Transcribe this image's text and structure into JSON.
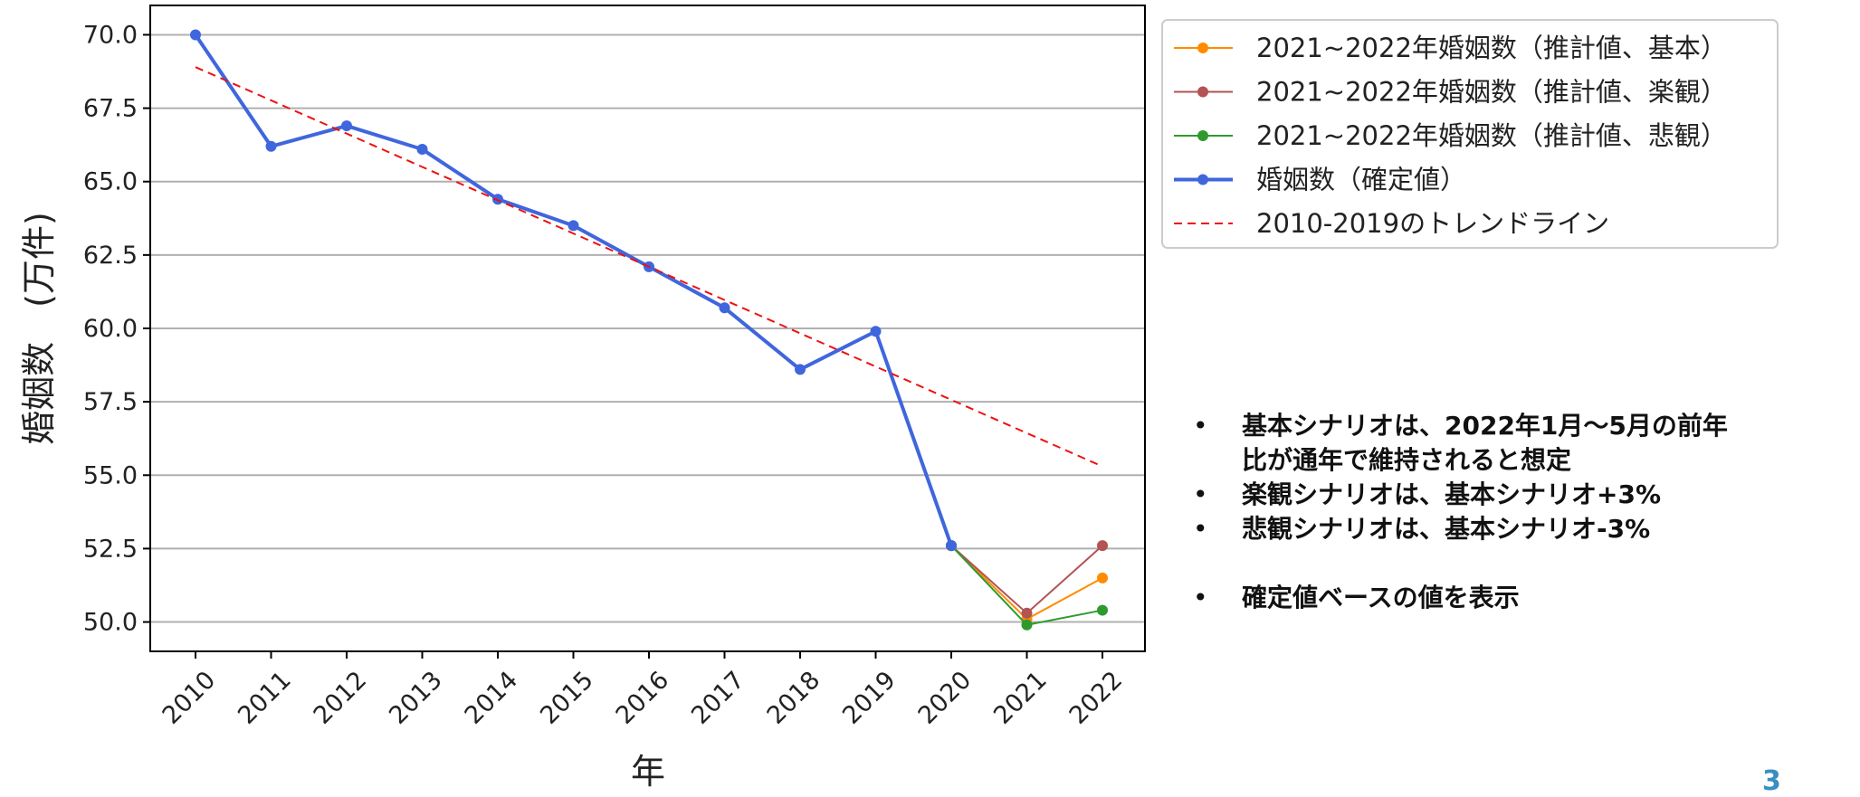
{
  "chart_data": {
    "type": "line",
    "xlabel": "年",
    "ylabel": "婚姻数　(万件)",
    "ylim": [
      49.0,
      71.0
    ],
    "yticks": [
      50.0,
      52.5,
      55.0,
      57.5,
      60.0,
      62.5,
      65.0,
      67.5,
      70.0
    ],
    "ytick_labels": [
      "50.0",
      "52.5",
      "55.0",
      "57.5",
      "60.0",
      "62.5",
      "65.0",
      "67.5",
      "70.0"
    ],
    "categories": [
      "2010",
      "2011",
      "2012",
      "2013",
      "2014",
      "2015",
      "2016",
      "2017",
      "2018",
      "2019",
      "2020",
      "2021",
      "2022"
    ],
    "grid": "horizontal",
    "legend_placement": "outside-top-right",
    "series": [
      {
        "name": "2021~2022年婚姻数（推計値、基本）",
        "color": "#ff8c00",
        "style": "line-marker",
        "x": [
          "2020",
          "2021",
          "2022"
        ],
        "values": [
          52.6,
          50.1,
          51.5
        ]
      },
      {
        "name": "2021~2022年婚姻数（推計値、楽観）",
        "color": "#b35353",
        "style": "line-marker",
        "x": [
          "2020",
          "2021",
          "2022"
        ],
        "values": [
          52.6,
          50.3,
          52.6
        ]
      },
      {
        "name": "2021~2022年婚姻数（推計値、悲観）",
        "color": "#2e9a2e",
        "style": "line-marker",
        "x": [
          "2020",
          "2021",
          "2022"
        ],
        "values": [
          52.6,
          49.9,
          50.4
        ]
      },
      {
        "name": "婚姻数（確定値）",
        "color": "#3f66dd",
        "style": "thick-line-marker",
        "x": [
          "2010",
          "2011",
          "2012",
          "2013",
          "2014",
          "2015",
          "2016",
          "2017",
          "2018",
          "2019",
          "2020"
        ],
        "values": [
          70.0,
          66.2,
          66.9,
          66.1,
          64.4,
          63.5,
          62.1,
          60.7,
          58.6,
          59.9,
          52.6
        ]
      },
      {
        "name": "2010-2019のトレンドライン",
        "color": "#ee1111",
        "style": "dashed",
        "x": [
          "2010",
          "2022"
        ],
        "values": [
          68.9,
          55.3
        ]
      }
    ]
  },
  "notes": [
    "基本シナリオは、2022年1月～5月の前年比が通年で維持されると想定",
    "楽観シナリオは、基本シナリオ+3%",
    "悲観シナリオは、基本シナリオ-3%",
    "確定値ベースの値を表示"
  ],
  "page_number": "3"
}
